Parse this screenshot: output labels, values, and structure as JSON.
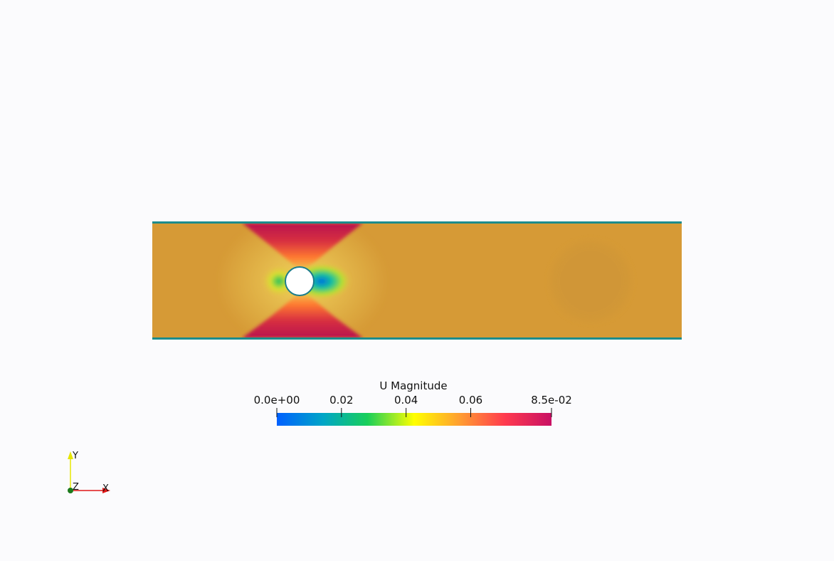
{
  "colorbar": {
    "title": "U Magnitude",
    "ticks": [
      {
        "label": "0.0e+00",
        "value": 0.0
      },
      {
        "label": "0.02",
        "value": 0.02
      },
      {
        "label": "0.04",
        "value": 0.04
      },
      {
        "label": "0.06",
        "value": 0.06
      },
      {
        "label": "8.5e-02",
        "value": 0.085
      }
    ],
    "range": [
      0.0,
      0.085
    ],
    "colormap": [
      "#0060ff",
      "#00a6c6",
      "#18cf5a",
      "#ffff00",
      "#ff9b32",
      "#ff3a4e",
      "#c81064"
    ]
  },
  "axes_triad": {
    "x_label": "X",
    "y_label": "Y",
    "z_label": "Z",
    "x_color": "#e01818",
    "y_color": "#e6e600",
    "z_color": "#1c7a1c"
  },
  "field": {
    "background_color": "#d69a36",
    "wall_color": "#1c8c8c",
    "obstacle": "cylinder"
  }
}
